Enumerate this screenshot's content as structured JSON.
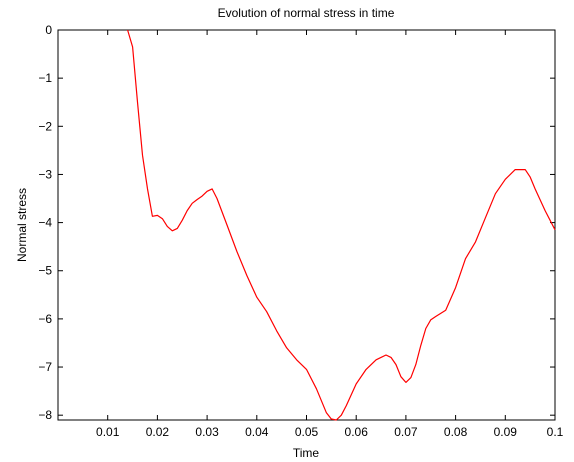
{
  "chart_data": {
    "type": "line",
    "title": "Evolution of normal stress in time",
    "xlabel": "Time",
    "ylabel": "Normal stress",
    "xlim": [
      0,
      0.1
    ],
    "ylim": [
      -8.1,
      0
    ],
    "grid": false,
    "legend": "none",
    "x_ticks": [
      0.01,
      0.02,
      0.03,
      0.04,
      0.05,
      0.06,
      0.07,
      0.08,
      0.09,
      0.1
    ],
    "x_tick_labels": [
      "0.01",
      "0.02",
      "0.03",
      "0.04",
      "0.05",
      "0.06",
      "0.07",
      "0.08",
      "0.09",
      "0.1"
    ],
    "y_ticks": [
      0,
      -1,
      -2,
      -3,
      -4,
      -5,
      -6,
      -7,
      -8
    ],
    "y_tick_labels": [
      "0",
      "−1",
      "−2",
      "−3",
      "−4",
      "−5",
      "−6",
      "−7",
      "−8"
    ],
    "series": [
      {
        "color": "#ff0000",
        "x": [
          0.014,
          0.015,
          0.016,
          0.017,
          0.018,
          0.019,
          0.02,
          0.021,
          0.022,
          0.023,
          0.024,
          0.025,
          0.026,
          0.027,
          0.028,
          0.029,
          0.03,
          0.031,
          0.032,
          0.034,
          0.036,
          0.038,
          0.04,
          0.042,
          0.044,
          0.046,
          0.048,
          0.05,
          0.052,
          0.054,
          0.055,
          0.056,
          0.057,
          0.058,
          0.06,
          0.062,
          0.064,
          0.066,
          0.067,
          0.068,
          0.069,
          0.07,
          0.071,
          0.072,
          0.073,
          0.074,
          0.075,
          0.076,
          0.078,
          0.08,
          0.082,
          0.084,
          0.086,
          0.088,
          0.09,
          0.092,
          0.094,
          0.095,
          0.096,
          0.098,
          0.1
        ],
        "y": [
          0.0,
          -0.35,
          -1.5,
          -2.6,
          -3.3,
          -3.87,
          -3.85,
          -3.92,
          -4.08,
          -4.17,
          -4.12,
          -3.95,
          -3.75,
          -3.6,
          -3.52,
          -3.45,
          -3.35,
          -3.3,
          -3.5,
          -4.05,
          -4.6,
          -5.1,
          -5.55,
          -5.85,
          -6.25,
          -6.6,
          -6.85,
          -7.05,
          -7.45,
          -7.95,
          -8.08,
          -8.1,
          -8.0,
          -7.8,
          -7.35,
          -7.05,
          -6.85,
          -6.75,
          -6.8,
          -6.95,
          -7.2,
          -7.32,
          -7.22,
          -6.95,
          -6.55,
          -6.2,
          -6.02,
          -5.95,
          -5.82,
          -5.35,
          -4.75,
          -4.4,
          -3.9,
          -3.4,
          -3.1,
          -2.9,
          -2.9,
          -3.05,
          -3.3,
          -3.75,
          -4.15
        ]
      }
    ]
  }
}
